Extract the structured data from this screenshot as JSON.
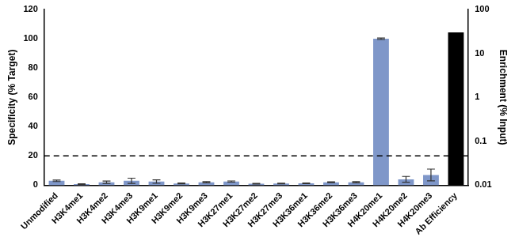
{
  "chart_data": {
    "type": "bar",
    "categories": [
      "Unmodified",
      "H3K4me1",
      "H3K4me2",
      "H3K4me3",
      "H3K9me1",
      "H3K9me2",
      "H3K9me3",
      "H3K27me1",
      "H3K27me2",
      "H3K27me3",
      "H3K36me1",
      "H3K36me2",
      "H3K36me3",
      "H4K20me1",
      "H4K20me2",
      "H4K20me3",
      "Ab Efficiency"
    ],
    "series": [
      {
        "color": "#7f97c9",
        "axis": "y",
        "values": [
          3,
          0.8,
          2,
          3,
          2.5,
          1.2,
          2,
          2.5,
          1,
          1.2,
          1.3,
          2,
          2,
          100,
          4,
          7,
          null
        ],
        "errors": [
          0.5,
          0.2,
          0.8,
          1.8,
          1.2,
          0.3,
          0.4,
          0.4,
          0.2,
          0.2,
          0.2,
          0.3,
          0.4,
          0.5,
          2,
          4,
          null
        ]
      },
      {
        "color": "#000000",
        "axis": "y2",
        "values": [
          null,
          null,
          null,
          null,
          null,
          null,
          null,
          null,
          null,
          null,
          null,
          null,
          null,
          null,
          null,
          null,
          30
        ]
      }
    ],
    "y_label": "Specificity (% Target)",
    "y2_label": "Enrichment (% Input)",
    "ylim": [
      0,
      120
    ],
    "yticks": [
      0,
      20,
      40,
      60,
      80,
      100,
      120
    ],
    "y2lim": [
      0.01,
      100
    ],
    "y2ticks": [
      0.01,
      0.1,
      1,
      10,
      100
    ],
    "log": "y2",
    "reference_line": 20,
    "grid": false
  }
}
